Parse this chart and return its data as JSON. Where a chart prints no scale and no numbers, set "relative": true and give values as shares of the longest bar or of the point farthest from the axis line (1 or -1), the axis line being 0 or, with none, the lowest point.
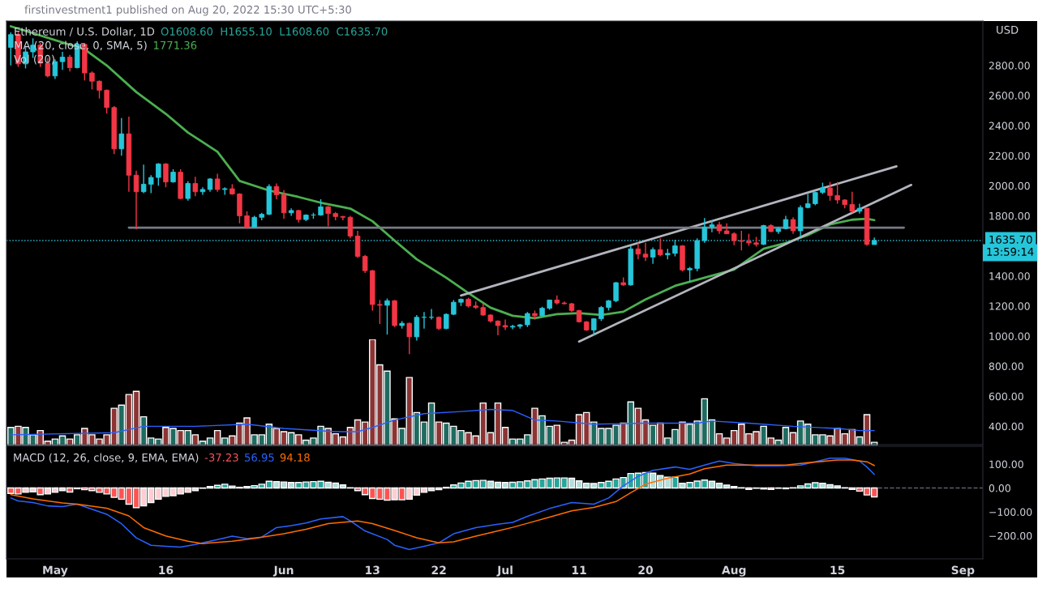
{
  "chart_data": [
    {
      "type": "candlestick",
      "title": "Ethereum / U.S. Dollar, 1D",
      "subtitle": "O1608.60  H1655.10  L1608.60  C1635.70",
      "ylabel": "USD",
      "annotations": [
        "firstinvestment1 published on Aug 20, 2022 15:30 UTC+5:30",
        "MA (20, close, 0, SMA, 5)",
        "1771.36",
        "Vol (20)",
        "13:59:14"
      ],
      "x": [
        "2022-04-25",
        "2022-04-26",
        "2022-04-27",
        "2022-04-28",
        "2022-04-29",
        "2022-04-30",
        "2022-05-01",
        "2022-05-02",
        "2022-05-03",
        "2022-05-04",
        "2022-05-05",
        "2022-05-06",
        "2022-05-07",
        "2022-05-08",
        "2022-05-09",
        "2022-05-10",
        "2022-05-11",
        "2022-05-12",
        "2022-05-13",
        "2022-05-14",
        "2022-05-15",
        "2022-05-16",
        "2022-05-17",
        "2022-05-18",
        "2022-05-19",
        "2022-05-20",
        "2022-05-21",
        "2022-05-22",
        "2022-05-23",
        "2022-05-24",
        "2022-05-25",
        "2022-05-26",
        "2022-05-27",
        "2022-05-28",
        "2022-05-29",
        "2022-05-30",
        "2022-05-31",
        "2022-06-01",
        "2022-06-02",
        "2022-06-03",
        "2022-06-04",
        "2022-06-05",
        "2022-06-06",
        "2022-06-07",
        "2022-06-08",
        "2022-06-09",
        "2022-06-10",
        "2022-06-11",
        "2022-06-12",
        "2022-06-13",
        "2022-06-14",
        "2022-06-15",
        "2022-06-16",
        "2022-06-17",
        "2022-06-18",
        "2022-06-19",
        "2022-06-20",
        "2022-06-21",
        "2022-06-22",
        "2022-06-23",
        "2022-06-24",
        "2022-06-25",
        "2022-06-26",
        "2022-06-27",
        "2022-06-28",
        "2022-06-29",
        "2022-06-30",
        "2022-07-01",
        "2022-07-02",
        "2022-07-03",
        "2022-07-04",
        "2022-07-05",
        "2022-07-06",
        "2022-07-07",
        "2022-07-08",
        "2022-07-09",
        "2022-07-10",
        "2022-07-11",
        "2022-07-12",
        "2022-07-13",
        "2022-07-14",
        "2022-07-15",
        "2022-07-16",
        "2022-07-17",
        "2022-07-18",
        "2022-07-19",
        "2022-07-20",
        "2022-07-21",
        "2022-07-22",
        "2022-07-23",
        "2022-07-24",
        "2022-07-25",
        "2022-07-26",
        "2022-07-27",
        "2022-07-28",
        "2022-07-29",
        "2022-07-30",
        "2022-07-31",
        "2022-08-01",
        "2022-08-02",
        "2022-08-03",
        "2022-08-04",
        "2022-08-05",
        "2022-08-06",
        "2022-08-07",
        "2022-08-08",
        "2022-08-09",
        "2022-08-10",
        "2022-08-11",
        "2022-08-12",
        "2022-08-13",
        "2022-08-14",
        "2022-08-15",
        "2022-08-16",
        "2022-08-17",
        "2022-08-18",
        "2022-08-19",
        "2022-08-20"
      ],
      "ohlc": [
        [
          2920,
          3020,
          2800,
          3005
        ],
        [
          3005,
          3030,
          2790,
          2810
        ],
        [
          2810,
          2920,
          2780,
          2890
        ],
        [
          2890,
          2980,
          2850,
          2935
        ],
        [
          2935,
          2950,
          2790,
          2815
        ],
        [
          2815,
          2850,
          2720,
          2730
        ],
        [
          2730,
          2840,
          2710,
          2825
        ],
        [
          2825,
          2890,
          2770,
          2855
        ],
        [
          2855,
          2870,
          2760,
          2785
        ],
        [
          2785,
          2960,
          2780,
          2940
        ],
        [
          2940,
          2950,
          2700,
          2750
        ],
        [
          2750,
          2760,
          2640,
          2695
        ],
        [
          2695,
          2700,
          2580,
          2635
        ],
        [
          2635,
          2640,
          2480,
          2520
        ],
        [
          2520,
          2530,
          2210,
          2245
        ],
        [
          2245,
          2450,
          2200,
          2345
        ],
        [
          2345,
          2460,
          1960,
          2070
        ],
        [
          2070,
          2100,
          1710,
          1960
        ],
        [
          1960,
          2140,
          1950,
          2010
        ],
        [
          2010,
          2070,
          1950,
          2055
        ],
        [
          2055,
          2150,
          2000,
          2145
        ],
        [
          2145,
          2150,
          1990,
          2025
        ],
        [
          2025,
          2110,
          2020,
          2090
        ],
        [
          2090,
          2110,
          1910,
          1915
        ],
        [
          1915,
          2030,
          1900,
          2015
        ],
        [
          2015,
          2060,
          1930,
          1960
        ],
        [
          1960,
          1990,
          1940,
          1975
        ],
        [
          1975,
          2050,
          1960,
          2045
        ],
        [
          2045,
          2080,
          1960,
          1975
        ],
        [
          1975,
          1990,
          1940,
          1980
        ],
        [
          1980,
          2010,
          1940,
          1945
        ],
        [
          1945,
          1950,
          1750,
          1800
        ],
        [
          1800,
          1830,
          1715,
          1725
        ],
        [
          1725,
          1800,
          1720,
          1790
        ],
        [
          1790,
          1820,
          1770,
          1810
        ],
        [
          1810,
          2010,
          1805,
          1995
        ],
        [
          1995,
          2015,
          1910,
          1940
        ],
        [
          1940,
          1970,
          1780,
          1820
        ],
        [
          1820,
          1850,
          1800,
          1835
        ],
        [
          1835,
          1840,
          1755,
          1775
        ],
        [
          1775,
          1810,
          1765,
          1805
        ],
        [
          1805,
          1820,
          1780,
          1805
        ],
        [
          1805,
          1910,
          1800,
          1860
        ],
        [
          1860,
          1865,
          1730,
          1815
        ],
        [
          1815,
          1825,
          1770,
          1795
        ],
        [
          1795,
          1800,
          1770,
          1790
        ],
        [
          1790,
          1800,
          1650,
          1665
        ],
        [
          1665,
          1700,
          1520,
          1530
        ],
        [
          1530,
          1540,
          1420,
          1435
        ],
        [
          1435,
          1440,
          1170,
          1210
        ],
        [
          1210,
          1240,
          1080,
          1205
        ],
        [
          1205,
          1250,
          1010,
          1235
        ],
        [
          1235,
          1240,
          1060,
          1070
        ],
        [
          1070,
          1100,
          1050,
          1085
        ],
        [
          1085,
          1090,
          880,
          995
        ],
        [
          995,
          1140,
          970,
          1125
        ],
        [
          1125,
          1160,
          1050,
          1125
        ],
        [
          1125,
          1180,
          1110,
          1125
        ],
        [
          1125,
          1130,
          1040,
          1050
        ],
        [
          1050,
          1150,
          1045,
          1145
        ],
        [
          1145,
          1240,
          1140,
          1225
        ],
        [
          1225,
          1250,
          1200,
          1245
        ],
        [
          1245,
          1255,
          1190,
          1200
        ],
        [
          1200,
          1230,
          1180,
          1190
        ],
        [
          1190,
          1215,
          1135,
          1140
        ],
        [
          1140,
          1145,
          1090,
          1100
        ],
        [
          1100,
          1105,
          1005,
          1070
        ],
        [
          1070,
          1110,
          1040,
          1060
        ],
        [
          1060,
          1075,
          1045,
          1065
        ],
        [
          1065,
          1080,
          1050,
          1075
        ],
        [
          1075,
          1160,
          1060,
          1150
        ],
        [
          1150,
          1170,
          1110,
          1135
        ],
        [
          1135,
          1195,
          1130,
          1185
        ],
        [
          1185,
          1240,
          1175,
          1240
        ],
        [
          1240,
          1270,
          1210,
          1220
        ],
        [
          1220,
          1230,
          1210,
          1215
        ],
        [
          1215,
          1220,
          1160,
          1170
        ],
        [
          1170,
          1175,
          1090,
          1095
        ],
        [
          1095,
          1100,
          1035,
          1040
        ],
        [
          1040,
          1120,
          1005,
          1115
        ],
        [
          1115,
          1200,
          1100,
          1190
        ],
        [
          1190,
          1240,
          1170,
          1235
        ],
        [
          1235,
          1360,
          1225,
          1355
        ],
        [
          1355,
          1390,
          1335,
          1340
        ],
        [
          1340,
          1600,
          1335,
          1580
        ],
        [
          1580,
          1620,
          1510,
          1545
        ],
        [
          1545,
          1620,
          1500,
          1525
        ],
        [
          1525,
          1590,
          1480,
          1575
        ],
        [
          1575,
          1650,
          1530,
          1540
        ],
        [
          1540,
          1580,
          1510,
          1550
        ],
        [
          1550,
          1640,
          1530,
          1600
        ],
        [
          1600,
          1605,
          1430,
          1440
        ],
        [
          1440,
          1460,
          1360,
          1450
        ],
        [
          1450,
          1650,
          1430,
          1635
        ],
        [
          1635,
          1785,
          1620,
          1725
        ],
        [
          1725,
          1770,
          1690,
          1740
        ],
        [
          1740,
          1760,
          1680,
          1700
        ],
        [
          1700,
          1750,
          1680,
          1680
        ],
        [
          1680,
          1690,
          1605,
          1635
        ],
        [
          1635,
          1700,
          1570,
          1630
        ],
        [
          1630,
          1680,
          1600,
          1620
        ],
        [
          1620,
          1660,
          1595,
          1610
        ],
        [
          1610,
          1740,
          1605,
          1735
        ],
        [
          1735,
          1745,
          1690,
          1695
        ],
        [
          1695,
          1725,
          1680,
          1715
        ],
        [
          1715,
          1800,
          1710,
          1775
        ],
        [
          1775,
          1790,
          1680,
          1700
        ],
        [
          1700,
          1870,
          1660,
          1855
        ],
        [
          1855,
          1945,
          1850,
          1880
        ],
        [
          1880,
          1960,
          1870,
          1955
        ],
        [
          1955,
          2020,
          1945,
          1985
        ],
        [
          1985,
          2025,
          1900,
          1935
        ],
        [
          1935,
          2025,
          1880,
          1905
        ],
        [
          1905,
          1910,
          1850,
          1875
        ],
        [
          1875,
          1960,
          1820,
          1830
        ],
        [
          1830,
          1880,
          1815,
          1850
        ],
        [
          1850,
          1850,
          1600,
          1610
        ],
        [
          1608.6,
          1655.1,
          1608.6,
          1635.7
        ]
      ],
      "series": [
        {
          "type": "line",
          "color": "#4caf50",
          "x": [
            "2022-04-25",
            "2022-05-05",
            "2022-05-08",
            "2022-05-12",
            "2022-05-16",
            "2022-05-19",
            "2022-05-23",
            "2022-05-26",
            "2022-05-30",
            "2022-06-03",
            "2022-06-06",
            "2022-06-10",
            "2022-06-13",
            "2022-06-16",
            "2022-06-19",
            "2022-06-23",
            "2022-06-26",
            "2022-06-29",
            "2022-07-02",
            "2022-07-05",
            "2022-07-08",
            "2022-07-11",
            "2022-07-14",
            "2022-07-17",
            "2022-07-20",
            "2022-07-24",
            "2022-07-28",
            "2022-08-01",
            "2022-08-05",
            "2022-08-08",
            "2022-08-11",
            "2022-08-14",
            "2022-08-17",
            "2022-08-19",
            "2022-08-20"
          ],
          "values": [
            3060,
            2907,
            2800,
            2623,
            2478,
            2354,
            2226,
            2032,
            1968,
            1925,
            1887,
            1848,
            1764,
            1635,
            1511,
            1388,
            1286,
            1189,
            1135,
            1119,
            1146,
            1152,
            1141,
            1162,
            1243,
            1334,
            1388,
            1442,
            1581,
            1619,
            1672,
            1742,
            1774,
            1780,
            1771.36
          ]
        },
        {
          "type": "line",
          "color": "#b2b5be",
          "x": [
            "2022-06-25",
            "2022-08-23"
          ],
          "values": [
            1270,
            2129
          ]
        },
        {
          "type": "line",
          "color": "#b2b5be",
          "x": [
            "2022-07-11",
            "2022-08-25"
          ],
          "values": [
            964,
            2005
          ]
        },
        {
          "type": "line",
          "color": "#787b86",
          "x": [
            "2022-05-11",
            "2022-08-24"
          ],
          "values": [
            1721,
            1721
          ]
        }
      ],
      "ref_lines": [
        {
          "axis": "y",
          "value": 1635.7,
          "label": "1635.70",
          "color": "#26c6da",
          "line_style": "dotted"
        }
      ],
      "xlim": [
        "2022-04-24T10:00",
        "2022-09-03T17:00"
      ],
      "ylim": [
        278,
        3095
      ],
      "yticks": [
        {
          "value": 400,
          "label": "400.00"
        },
        {
          "value": 600,
          "label": "600.00"
        },
        {
          "value": 800,
          "label": "800.00"
        },
        {
          "value": 1000,
          "label": "1000.00"
        },
        {
          "value": 1200,
          "label": "1200.00"
        },
        {
          "value": 1400,
          "label": "1400.00"
        },
        {
          "value": 1800,
          "label": "1800.00"
        },
        {
          "value": 2000,
          "label": "2000.00"
        },
        {
          "value": 2200,
          "label": "2200.00"
        },
        {
          "value": 2400,
          "label": "2400.00"
        },
        {
          "value": 2600,
          "label": "2600.00"
        },
        {
          "value": 2800,
          "label": "2800.00"
        }
      ],
      "tick_labels": "y"
    },
    {
      "type": "bar",
      "relative": true,
      "tick_labels": false,
      "xlim": [
        "2022-04-24T10:00",
        "2022-09-03T17:00"
      ],
      "x": [
        "2022-04-25",
        "2022-04-26",
        "2022-04-27",
        "2022-04-28",
        "2022-04-29",
        "2022-04-30",
        "2022-05-01",
        "2022-05-02",
        "2022-05-03",
        "2022-05-04",
        "2022-05-05",
        "2022-05-06",
        "2022-05-07",
        "2022-05-08",
        "2022-05-09",
        "2022-05-10",
        "2022-05-11",
        "2022-05-12",
        "2022-05-13",
        "2022-05-14",
        "2022-05-15",
        "2022-05-16",
        "2022-05-17",
        "2022-05-18",
        "2022-05-19",
        "2022-05-20",
        "2022-05-21",
        "2022-05-22",
        "2022-05-23",
        "2022-05-24",
        "2022-05-25",
        "2022-05-26",
        "2022-05-27",
        "2022-05-28",
        "2022-05-29",
        "2022-05-30",
        "2022-05-31",
        "2022-06-01",
        "2022-06-02",
        "2022-06-03",
        "2022-06-04",
        "2022-06-05",
        "2022-06-06",
        "2022-06-07",
        "2022-06-08",
        "2022-06-09",
        "2022-06-10",
        "2022-06-11",
        "2022-06-12",
        "2022-06-13",
        "2022-06-14",
        "2022-06-15",
        "2022-06-16",
        "2022-06-17",
        "2022-06-18",
        "2022-06-19",
        "2022-06-20",
        "2022-06-21",
        "2022-06-22",
        "2022-06-23",
        "2022-06-24",
        "2022-06-25",
        "2022-06-26",
        "2022-06-27",
        "2022-06-28",
        "2022-06-29",
        "2022-06-30",
        "2022-07-01",
        "2022-07-02",
        "2022-07-03",
        "2022-07-04",
        "2022-07-05",
        "2022-07-06",
        "2022-07-07",
        "2022-07-08",
        "2022-07-09",
        "2022-07-10",
        "2022-07-11",
        "2022-07-12",
        "2022-07-13",
        "2022-07-14",
        "2022-07-15",
        "2022-07-16",
        "2022-07-17",
        "2022-07-18",
        "2022-07-19",
        "2022-07-20",
        "2022-07-21",
        "2022-07-22",
        "2022-07-23",
        "2022-07-24",
        "2022-07-25",
        "2022-07-26",
        "2022-07-27",
        "2022-07-28",
        "2022-07-29",
        "2022-07-30",
        "2022-07-31",
        "2022-08-01",
        "2022-08-02",
        "2022-08-03",
        "2022-08-04",
        "2022-08-05",
        "2022-08-06",
        "2022-08-07",
        "2022-08-08",
        "2022-08-09",
        "2022-08-10",
        "2022-08-11",
        "2022-08-12",
        "2022-08-13",
        "2022-08-14",
        "2022-08-15",
        "2022-08-16",
        "2022-08-17",
        "2022-08-18",
        "2022-08-19",
        "2022-08-20"
      ],
      "series": [
        {
          "type": "bar",
          "colors": [
            "#1e6b60",
            "#8c3434",
            "#1e6b60",
            "#1e6b60",
            "#8c3434",
            "#8c3434",
            "#1e6b60",
            "#1e6b60",
            "#8c3434",
            "#1e6b60",
            "#8c3434",
            "#8c3434",
            "#8c3434",
            "#8c3434",
            "#8c3434",
            "#1e6b60",
            "#8c3434",
            "#8c3434",
            "#1e6b60",
            "#1e6b60",
            "#1e6b60",
            "#8c3434",
            "#1e6b60",
            "#8c3434",
            "#1e6b60",
            "#8c3434",
            "#1e6b60",
            "#1e6b60",
            "#8c3434",
            "#1e6b60",
            "#8c3434",
            "#8c3434",
            "#8c3434",
            "#1e6b60",
            "#1e6b60",
            "#1e6b60",
            "#8c3434",
            "#8c3434",
            "#1e6b60",
            "#8c3434",
            "#1e6b60",
            "#1e6b60",
            "#1e6b60",
            "#8c3434",
            "#8c3434",
            "#8c3434",
            "#8c3434",
            "#8c3434",
            "#8c3434",
            "#8c3434",
            "#8c3434",
            "#1e6b60",
            "#8c3434",
            "#1e6b60",
            "#8c3434",
            "#1e6b60",
            "#1e6b60",
            "#1e6b60",
            "#8c3434",
            "#1e6b60",
            "#1e6b60",
            "#1e6b60",
            "#8c3434",
            "#8c3434",
            "#8c3434",
            "#8c3434",
            "#8c3434",
            "#8c3434",
            "#1e6b60",
            "#1e6b60",
            "#1e6b60",
            "#8c3434",
            "#1e6b60",
            "#1e6b60",
            "#8c3434",
            "#8c3434",
            "#8c3434",
            "#8c3434",
            "#8c3434",
            "#1e6b60",
            "#1e6b60",
            "#1e6b60",
            "#1e6b60",
            "#8c3434",
            "#1e6b60",
            "#8c3434",
            "#8c3434",
            "#1e6b60",
            "#8c3434",
            "#1e6b60",
            "#1e6b60",
            "#8c3434",
            "#1e6b60",
            "#1e6b60",
            "#1e6b60",
            "#1e6b60",
            "#8c3434",
            "#8c3434",
            "#8c3434",
            "#8c3434",
            "#8c3434",
            "#8c3434",
            "#1e6b60",
            "#8c3434",
            "#1e6b60",
            "#1e6b60",
            "#8c3434",
            "#1e6b60",
            "#1e6b60",
            "#1e6b60",
            "#1e6b60",
            "#8c3434",
            "#8c3434",
            "#8c3434",
            "#8c3434",
            "#1e6b60",
            "#8c3434",
            "#1e6b60"
          ],
          "values": [
            0.17,
            0.18,
            0.17,
            0.1,
            0.14,
            0.04,
            0.06,
            0.09,
            0.06,
            0.1,
            0.16,
            0.1,
            0.06,
            0.1,
            0.35,
            0.38,
            0.48,
            0.51,
            0.27,
            0.07,
            0.06,
            0.17,
            0.16,
            0.14,
            0.14,
            0.1,
            0.04,
            0.07,
            0.14,
            0.07,
            0.09,
            0.21,
            0.26,
            0.1,
            0.1,
            0.2,
            0.16,
            0.13,
            0.12,
            0.1,
            0.05,
            0.07,
            0.18,
            0.16,
            0.11,
            0.08,
            0.17,
            0.24,
            0.22,
            1.0,
            0.76,
            0.7,
            0.25,
            0.16,
            0.64,
            0.31,
            0.22,
            0.4,
            0.22,
            0.21,
            0.18,
            0.14,
            0.12,
            0.09,
            0.4,
            0.12,
            0.4,
            0.17,
            0.06,
            0.06,
            0.1,
            0.35,
            0.28,
            0.18,
            0.19,
            0.03,
            0.05,
            0.29,
            0.31,
            0.22,
            0.16,
            0.16,
            0.19,
            0.21,
            0.41,
            0.35,
            0.24,
            0.19,
            0.21,
            0.07,
            0.15,
            0.22,
            0.2,
            0.23,
            0.44,
            0.24,
            0.11,
            0.07,
            0.14,
            0.2,
            0.11,
            0.13,
            0.18,
            0.07,
            0.05,
            0.17,
            0.12,
            0.23,
            0.2,
            0.1,
            0.1,
            0.09,
            0.16,
            0.11,
            0.15,
            0.08,
            0.29,
            0.03
          ]
        },
        {
          "type": "line",
          "color": "#2962ff",
          "x": [
            "2022-04-25",
            "2022-05-09",
            "2022-05-13",
            "2022-05-20",
            "2022-05-27",
            "2022-06-01",
            "2022-06-08",
            "2022-06-11",
            "2022-06-13",
            "2022-06-16",
            "2022-06-20",
            "2022-06-25",
            "2022-06-29",
            "2022-07-02",
            "2022-07-05",
            "2022-07-08",
            "2022-07-13",
            "2022-07-20",
            "2022-07-27",
            "2022-07-29",
            "2022-08-03",
            "2022-08-09",
            "2022-08-15",
            "2022-08-18",
            "2022-08-20"
          ],
          "values": [
            0.1,
            0.12,
            0.18,
            0.18,
            0.2,
            0.16,
            0.13,
            0.13,
            0.17,
            0.24,
            0.3,
            0.32,
            0.34,
            0.33,
            0.24,
            0.23,
            0.2,
            0.21,
            0.21,
            0.23,
            0.21,
            0.18,
            0.16,
            0.14,
            0.14
          ]
        }
      ]
    },
    {
      "type": "bar",
      "title": "MACD (12, 26, close, 9, EMA, EMA)",
      "annotations": [
        "-37.23",
        "56.95",
        "94.18"
      ],
      "x": [
        "2022-04-25",
        "2022-04-26",
        "2022-04-27",
        "2022-04-28",
        "2022-04-29",
        "2022-04-30",
        "2022-05-01",
        "2022-05-02",
        "2022-05-03",
        "2022-05-04",
        "2022-05-05",
        "2022-05-06",
        "2022-05-07",
        "2022-05-08",
        "2022-05-09",
        "2022-05-10",
        "2022-05-11",
        "2022-05-12",
        "2022-05-13",
        "2022-05-14",
        "2022-05-15",
        "2022-05-16",
        "2022-05-17",
        "2022-05-18",
        "2022-05-19",
        "2022-05-20",
        "2022-05-21",
        "2022-05-22",
        "2022-05-23",
        "2022-05-24",
        "2022-05-25",
        "2022-05-26",
        "2022-05-27",
        "2022-05-28",
        "2022-05-29",
        "2022-05-30",
        "2022-05-31",
        "2022-06-01",
        "2022-06-02",
        "2022-06-03",
        "2022-06-04",
        "2022-06-05",
        "2022-06-06",
        "2022-06-07",
        "2022-06-08",
        "2022-06-09",
        "2022-06-10",
        "2022-06-11",
        "2022-06-12",
        "2022-06-13",
        "2022-06-14",
        "2022-06-15",
        "2022-06-16",
        "2022-06-17",
        "2022-06-18",
        "2022-06-19",
        "2022-06-20",
        "2022-06-21",
        "2022-06-22",
        "2022-06-23",
        "2022-06-24",
        "2022-06-25",
        "2022-06-26",
        "2022-06-27",
        "2022-06-28",
        "2022-06-29",
        "2022-06-30",
        "2022-07-01",
        "2022-07-02",
        "2022-07-03",
        "2022-07-04",
        "2022-07-05",
        "2022-07-06",
        "2022-07-07",
        "2022-07-08",
        "2022-07-09",
        "2022-07-10",
        "2022-07-11",
        "2022-07-12",
        "2022-07-13",
        "2022-07-14",
        "2022-07-15",
        "2022-07-16",
        "2022-07-17",
        "2022-07-18",
        "2022-07-19",
        "2022-07-20",
        "2022-07-21",
        "2022-07-22",
        "2022-07-23",
        "2022-07-24",
        "2022-07-25",
        "2022-07-26",
        "2022-07-27",
        "2022-07-28",
        "2022-07-29",
        "2022-07-30",
        "2022-07-31",
        "2022-08-01",
        "2022-08-02",
        "2022-08-03",
        "2022-08-04",
        "2022-08-05",
        "2022-08-06",
        "2022-08-07",
        "2022-08-08",
        "2022-08-09",
        "2022-08-10",
        "2022-08-11",
        "2022-08-12",
        "2022-08-13",
        "2022-08-14",
        "2022-08-15",
        "2022-08-16",
        "2022-08-17",
        "2022-08-18",
        "2022-08-19",
        "2022-08-20"
      ],
      "series": [
        {
          "type": "bar",
          "colors": [
            "#ff5252",
            "#ff5252",
            "#ffcdd2",
            "#ffcdd2",
            "#ff5252",
            "#ffcdd2",
            "#ffcdd2",
            "#ffcdd2",
            "#ff5252",
            "#ffcdd2",
            "#ff5252",
            "#ff5252",
            "#ff5252",
            "#ff5252",
            "#ff5252",
            "#ff5252",
            "#ff5252",
            "#ff5252",
            "#ffcdd2",
            "#ffcdd2",
            "#ffcdd2",
            "#ffcdd2",
            "#ffcdd2",
            "#ffcdd2",
            "#ffcdd2",
            "#ffcdd2",
            "#ffcdd2",
            "#26a69a",
            "#26a69a",
            "#26a69a",
            "#b2dfdb",
            "#b2dfdb",
            "#26a69a",
            "#26a69a",
            "#26a69a",
            "#26a69a",
            "#b2dfdb",
            "#b2dfdb",
            "#b2dfdb",
            "#26a69a",
            "#26a69a",
            "#26a69a",
            "#26a69a",
            "#b2dfdb",
            "#b2dfdb",
            "#b2dfdb",
            "#b2dfdb",
            "#ff5252",
            "#ff5252",
            "#ff5252",
            "#ff5252",
            "#ff5252",
            "#ffcdd2",
            "#ff5252",
            "#ffcdd2",
            "#ffcdd2",
            "#ffcdd2",
            "#ffcdd2",
            "#ffcdd2",
            "#26a69a",
            "#26a69a",
            "#26a69a",
            "#26a69a",
            "#26a69a",
            "#26a69a",
            "#b2dfdb",
            "#b2dfdb",
            "#b2dfdb",
            "#26a69a",
            "#26a69a",
            "#26a69a",
            "#26a69a",
            "#26a69a",
            "#26a69a",
            "#26a69a",
            "#26a69a",
            "#b2dfdb",
            "#b2dfdb",
            "#b2dfdb",
            "#b2dfdb",
            "#26a69a",
            "#26a69a",
            "#26a69a",
            "#26a69a",
            "#26a69a",
            "#26a69a",
            "#26a69a",
            "#b2dfdb",
            "#b2dfdb",
            "#b2dfdb",
            "#26a69a",
            "#b2dfdb",
            "#26a69a",
            "#26a69a",
            "#26a69a",
            "#b2dfdb",
            "#b2dfdb",
            "#b2dfdb",
            "#b2dfdb",
            "#b2dfdb",
            "#ff5252",
            "#ffcdd2",
            "#ff5252",
            "#ff5252",
            "#ffcdd2",
            "#ff5252",
            "#26a69a",
            "#26a69a",
            "#26a69a",
            "#26a69a",
            "#b2dfdb",
            "#b2dfdb",
            "#b2dfdb",
            "#b2dfdb",
            "#ff5252",
            "#ff5252",
            "#ff5252",
            "#ff5252"
          ],
          "values": [
            -23,
            -25,
            -18,
            -16,
            -28,
            -25,
            -18,
            -11,
            -17,
            -3,
            -7,
            -11,
            -18,
            -25,
            -39,
            -47,
            -68,
            -82,
            -75,
            -61,
            -47,
            -35,
            -32,
            -25,
            -18,
            -11,
            -1,
            6,
            11,
            16,
            8,
            3,
            6,
            10,
            16,
            28,
            27,
            25,
            23,
            23,
            25,
            27,
            28,
            24,
            21,
            13,
            1,
            -11,
            -28,
            -44,
            -47,
            -51,
            -49,
            -49,
            -47,
            -30,
            -18,
            -11,
            -7,
            3,
            13,
            21,
            28,
            31,
            32,
            28,
            24,
            23,
            24,
            26,
            30,
            35,
            38,
            41,
            42,
            42,
            41,
            30,
            20,
            19,
            23,
            28,
            38,
            44,
            61,
            62,
            65,
            62,
            52,
            45,
            45,
            20,
            23,
            29,
            33,
            28,
            20,
            12,
            6,
            1,
            -6,
            -1,
            -4,
            -6,
            -1,
            -3,
            1,
            9,
            17,
            22,
            20,
            14,
            9,
            1,
            -6,
            -13,
            -29,
            -37.23
          ]
        },
        {
          "type": "line",
          "color": "#2962ff",
          "x": [
            "2022-04-25",
            "2022-04-26",
            "2022-04-28",
            "2022-04-30",
            "2022-05-02",
            "2022-05-04",
            "2022-05-06",
            "2022-05-08",
            "2022-05-10",
            "2022-05-12",
            "2022-05-14",
            "2022-05-16",
            "2022-05-18",
            "2022-05-20",
            "2022-05-23",
            "2022-05-25",
            "2022-05-27",
            "2022-05-29",
            "2022-05-31",
            "2022-06-02",
            "2022-06-04",
            "2022-06-06",
            "2022-06-09",
            "2022-06-10",
            "2022-06-12",
            "2022-06-15",
            "2022-06-16",
            "2022-06-18",
            "2022-06-20",
            "2022-06-22",
            "2022-06-24",
            "2022-06-27",
            "2022-06-30",
            "2022-07-02",
            "2022-07-04",
            "2022-07-07",
            "2022-07-10",
            "2022-07-13",
            "2022-07-15",
            "2022-07-17",
            "2022-07-19",
            "2022-07-21",
            "2022-07-24",
            "2022-07-26",
            "2022-07-28",
            "2022-07-30",
            "2022-08-01",
            "2022-08-04",
            "2022-08-07",
            "2022-08-10",
            "2022-08-12",
            "2022-08-14",
            "2022-08-16",
            "2022-08-18",
            "2022-08-19",
            "2022-08-20"
          ],
          "values": [
            -42,
            -54,
            -61,
            -75,
            -78,
            -68,
            -89,
            -110,
            -150,
            -209,
            -240,
            -244,
            -248,
            -237,
            -216,
            -202,
            -212,
            -206,
            -166,
            -158,
            -147,
            -130,
            -120,
            -138,
            -180,
            -216,
            -240,
            -258,
            -244,
            -230,
            -192,
            -166,
            -152,
            -144,
            -119,
            -86,
            -61,
            -68,
            -42,
            9,
            49,
            74,
            88,
            78,
            96,
            113,
            103,
            93,
            93,
            96,
            110,
            125,
            125,
            113,
            88,
            56.95
          ]
        },
        {
          "type": "line",
          "color": "#ff6d00",
          "x": [
            "2022-04-25",
            "2022-04-28",
            "2022-05-02",
            "2022-05-04",
            "2022-05-08",
            "2022-05-11",
            "2022-05-13",
            "2022-05-16",
            "2022-05-19",
            "2022-05-21",
            "2022-05-25",
            "2022-05-28",
            "2022-06-01",
            "2022-06-04",
            "2022-06-07",
            "2022-06-11",
            "2022-06-13",
            "2022-06-16",
            "2022-06-19",
            "2022-06-22",
            "2022-06-24",
            "2022-06-27",
            "2022-06-30",
            "2022-07-02",
            "2022-07-04",
            "2022-07-07",
            "2022-07-10",
            "2022-07-13",
            "2022-07-16",
            "2022-07-18",
            "2022-07-20",
            "2022-07-23",
            "2022-07-26",
            "2022-07-28",
            "2022-07-31",
            "2022-08-04",
            "2022-08-08",
            "2022-08-11",
            "2022-08-15",
            "2022-08-17",
            "2022-08-19",
            "2022-08-20"
          ],
          "values": [
            -28,
            -46,
            -63,
            -68,
            -85,
            -117,
            -166,
            -201,
            -223,
            -233,
            -223,
            -211,
            -192,
            -173,
            -149,
            -138,
            -149,
            -178,
            -209,
            -230,
            -226,
            -202,
            -180,
            -165,
            -148,
            -122,
            -96,
            -81,
            -57,
            -20,
            16,
            41,
            59,
            81,
            96,
            96,
            96,
            106,
            117,
            117,
            110,
            94.18
          ]
        }
      ],
      "ref_lines": [
        {
          "axis": "y",
          "value": 0,
          "color": "#5d606b",
          "line_style": "dashed"
        }
      ],
      "xlim": [
        "2022-04-24T10:00",
        "2022-09-03T17:00"
      ],
      "ylim": [
        -297,
        175
      ],
      "xticks": [
        {
          "value": "2022-05-01",
          "label": "May"
        },
        {
          "value": "2022-05-16",
          "label": "16"
        },
        {
          "value": "2022-06-01",
          "label": "Jun"
        },
        {
          "value": "2022-06-13",
          "label": "13"
        },
        {
          "value": "2022-06-22",
          "label": "22"
        },
        {
          "value": "2022-07-01",
          "label": "Jul"
        },
        {
          "value": "2022-07-11",
          "label": "11"
        },
        {
          "value": "2022-07-20",
          "label": "20"
        },
        {
          "value": "2022-08-01",
          "label": "Aug"
        },
        {
          "value": "2022-08-15",
          "label": "15"
        },
        {
          "value": "2022-09-01",
          "label": "Sep"
        }
      ],
      "yticks": [
        {
          "value": 100,
          "label": "100.00"
        },
        {
          "value": 0,
          "label": "0.00"
        },
        {
          "value": -100,
          "label": "−100.00"
        },
        {
          "value": -200,
          "label": "−200.00"
        }
      ]
    }
  ]
}
